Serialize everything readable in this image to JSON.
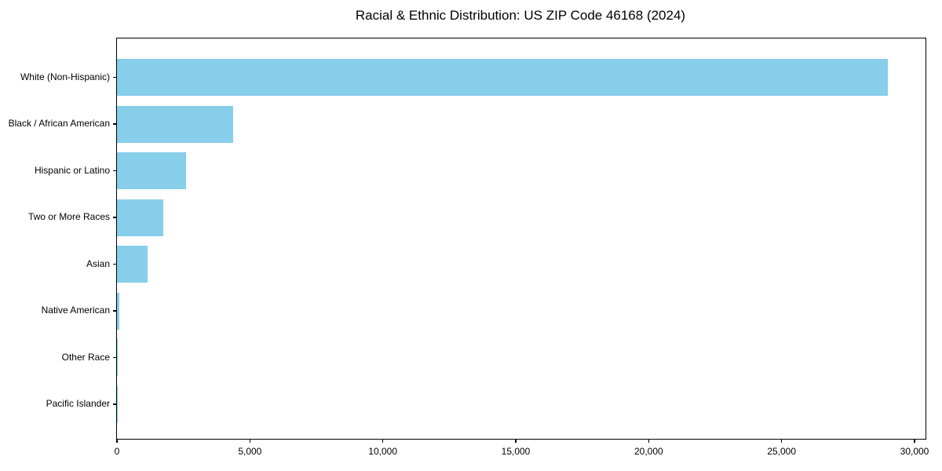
{
  "page": {
    "background": "#ffffff"
  },
  "chart_data": {
    "type": "bar",
    "orientation": "horizontal",
    "title": "Racial & Ethnic Distribution: US ZIP Code 46168 (2024)",
    "categories": [
      "White (Non-Hispanic)",
      "Black / African American",
      "Hispanic or Latino",
      "Two or More Races",
      "Asian",
      "Native American",
      "Other Race",
      "Pacific Islander"
    ],
    "values": [
      28990,
      4360,
      2590,
      1750,
      1160,
      100,
      30,
      10
    ],
    "xlabel": "",
    "ylabel": "",
    "xlim": [
      0,
      30413
    ],
    "x_ticks": [
      0,
      5000,
      10000,
      15000,
      20000,
      25000,
      30000
    ],
    "x_tick_labels": [
      "0",
      "5,000",
      "10,000",
      "15,000",
      "20,000",
      "25,000",
      "30,000"
    ],
    "bar_color": "#87CEEB",
    "text_color": "#000000",
    "grid": false,
    "legend": null
  }
}
